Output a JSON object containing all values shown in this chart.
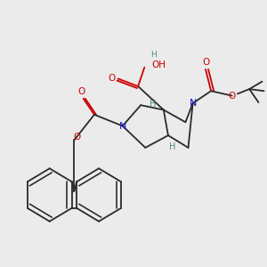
{
  "bg": "#ebebeb",
  "atom_colors": {
    "N": "#1414cc",
    "O": "#cc0000",
    "C": "#2a2a2a",
    "H": "#4a8888"
  },
  "lw": 1.3,
  "fs": 7.0
}
